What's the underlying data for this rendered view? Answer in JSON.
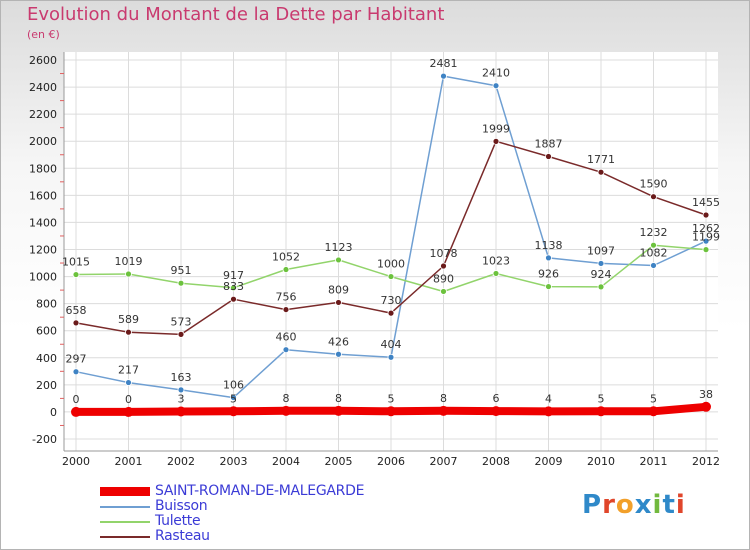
{
  "header": {
    "title": "Evolution du Montant de la Dette par Habitant",
    "subtitle": "(en €)"
  },
  "colors": {
    "title": "#c93a6f",
    "legend_text": "#3b3bd6"
  },
  "logo": {
    "letters": [
      "P",
      "r",
      "o",
      "x",
      "i",
      "t",
      "i"
    ],
    "letter_colors": [
      "#2f89c9",
      "#e0462b",
      "#f2a02a",
      "#2f89c9",
      "#72b93e",
      "#2f89c9",
      "#e0462b"
    ]
  },
  "chart_data": {
    "type": "line",
    "title": "Evolution du Montant de la Dette par Habitant",
    "subtitle": "(en €)",
    "x": [
      "2000",
      "2001",
      "2002",
      "2003",
      "2004",
      "2005",
      "2006",
      "2007",
      "2008",
      "2009",
      "2010",
      "2011",
      "2012"
    ],
    "ylim": [
      -200,
      2600
    ],
    "yticks": [
      -200,
      0,
      200,
      400,
      600,
      800,
      1000,
      1200,
      1400,
      1600,
      1800,
      2000,
      2200,
      2400,
      2600
    ],
    "grid": true,
    "legend_position": "bottom-left",
    "series": [
      {
        "name": "SAINT-ROMAN-DE-MALEGARDE",
        "color": "#ee0000",
        "thick": true,
        "values": [
          0,
          0,
          3,
          5,
          8,
          8,
          5,
          8,
          6,
          4,
          5,
          5,
          38
        ],
        "labels": [
          "0",
          "0",
          "3",
          "5",
          "8",
          "8",
          "5",
          "8",
          "6",
          "4",
          "5",
          "5",
          "38"
        ]
      },
      {
        "name": "Buisson",
        "color": "#6f9fd2",
        "marker": "#3f83c4",
        "values": [
          297,
          217,
          163,
          106,
          460,
          426,
          404,
          2481,
          2410,
          1138,
          1097,
          1082,
          1262
        ],
        "labels": [
          "297",
          "217",
          "163",
          "106",
          "460",
          "426",
          "404",
          "2481",
          "2410",
          "1138",
          "1097",
          "1082",
          "1262"
        ]
      },
      {
        "name": "Tulette",
        "color": "#92d46b",
        "marker": "#6cc23d",
        "values": [
          1015,
          1019,
          951,
          917,
          1052,
          1123,
          1000,
          890,
          1023,
          926,
          924,
          1232,
          1199
        ],
        "labels": [
          "1015",
          "1019",
          "951",
          "917",
          "1052",
          "1123",
          "1000",
          "890",
          "1023",
          "926",
          "924",
          "1232",
          "1199"
        ]
      },
      {
        "name": "Rasteau",
        "color": "#7a2a2a",
        "marker": "#6a1a1a",
        "values": [
          658,
          589,
          573,
          833,
          756,
          809,
          730,
          1078,
          1999,
          1887,
          1771,
          1590,
          1455
        ],
        "labels": [
          "658",
          "589",
          "573",
          "833",
          "756",
          "809",
          "730",
          "1078",
          "1999",
          "1887",
          "1771",
          "1590",
          "1455"
        ]
      }
    ]
  }
}
